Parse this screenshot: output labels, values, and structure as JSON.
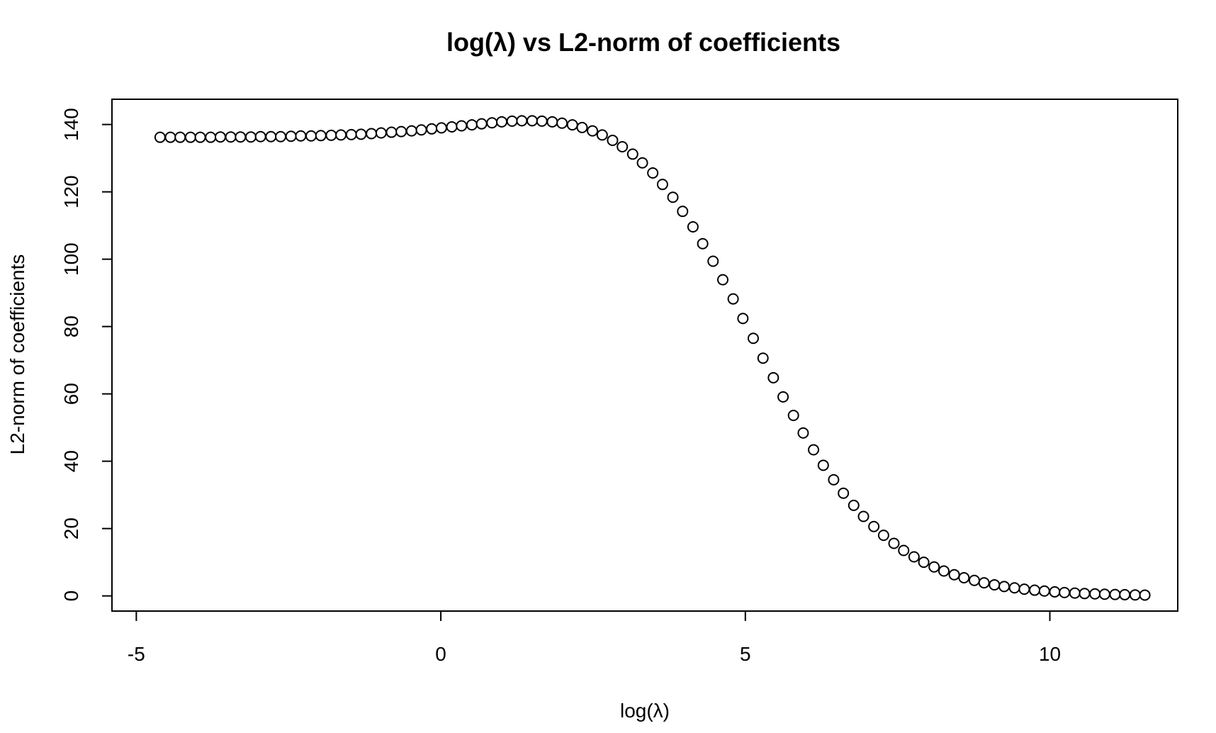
{
  "chart_data": {
    "type": "scatter",
    "title": "log(λ) vs L2-norm of coefficients",
    "xlabel": "log(λ)",
    "ylabel": "L2-norm of coefficients",
    "xlim": [
      -5.4,
      12.1
    ],
    "ylim": [
      -4.5,
      147.5
    ],
    "xticks": [
      -5,
      0,
      5,
      10
    ],
    "xtick_labels": [
      "-5",
      "0",
      "5",
      "10"
    ],
    "yticks": [
      0,
      20,
      40,
      60,
      80,
      100,
      120,
      140
    ],
    "ytick_labels": [
      "0",
      "20",
      "40",
      "60",
      "80",
      "100",
      "120",
      "140"
    ],
    "grid": false,
    "legend": "none",
    "marker": "open-circle",
    "series": [
      {
        "x": [
          -4.61,
          -4.44,
          -4.28,
          -4.11,
          -3.95,
          -3.78,
          -3.62,
          -3.45,
          -3.29,
          -3.12,
          -2.96,
          -2.79,
          -2.63,
          -2.46,
          -2.3,
          -2.13,
          -1.97,
          -1.8,
          -1.64,
          -1.47,
          -1.31,
          -1.14,
          -0.98,
          -0.81,
          -0.65,
          -0.48,
          -0.32,
          -0.15,
          0.01,
          0.18,
          0.34,
          0.51,
          0.67,
          0.84,
          1.0,
          1.17,
          1.33,
          1.5,
          1.66,
          1.83,
          1.99,
          2.16,
          2.32,
          2.49,
          2.65,
          2.82,
          2.98,
          3.15,
          3.31,
          3.48,
          3.64,
          3.81,
          3.97,
          4.14,
          4.3,
          4.47,
          4.63,
          4.8,
          4.96,
          5.13,
          5.29,
          5.46,
          5.62,
          5.79,
          5.95,
          6.12,
          6.28,
          6.45,
          6.61,
          6.78,
          6.94,
          7.11,
          7.27,
          7.44,
          7.6,
          7.77,
          7.93,
          8.1,
          8.26,
          8.43,
          8.59,
          8.76,
          8.92,
          9.09,
          9.25,
          9.42,
          9.58,
          9.75,
          9.91,
          10.08,
          10.24,
          10.41,
          10.57,
          10.74,
          10.9,
          11.07,
          11.23,
          11.4,
          11.56
        ],
        "y": [
          136.2,
          136.2,
          136.2,
          136.2,
          136.2,
          136.2,
          136.3,
          136.3,
          136.3,
          136.3,
          136.4,
          136.4,
          136.4,
          136.5,
          136.6,
          136.6,
          136.7,
          136.8,
          136.9,
          137.0,
          137.1,
          137.3,
          137.5,
          137.7,
          137.9,
          138.1,
          138.4,
          138.7,
          139.0,
          139.3,
          139.6,
          139.9,
          140.2,
          140.5,
          140.8,
          141.0,
          141.1,
          141.1,
          141.0,
          140.8,
          140.4,
          139.9,
          139.1,
          138.1,
          136.9,
          135.3,
          133.4,
          131.2,
          128.6,
          125.6,
          122.2,
          118.4,
          114.2,
          109.6,
          104.6,
          99.4,
          93.9,
          88.2,
          82.4,
          76.5,
          70.6,
          64.8,
          59.1,
          53.6,
          48.4,
          43.4,
          38.8,
          34.5,
          30.5,
          26.9,
          23.6,
          20.6,
          18.0,
          15.6,
          13.5,
          11.6,
          10.0,
          8.6,
          7.4,
          6.3,
          5.4,
          4.6,
          3.9,
          3.3,
          2.8,
          2.4,
          2.0,
          1.7,
          1.45,
          1.2,
          1.0,
          0.85,
          0.7,
          0.6,
          0.5,
          0.42,
          0.36,
          0.3,
          0.25
        ]
      }
    ]
  }
}
